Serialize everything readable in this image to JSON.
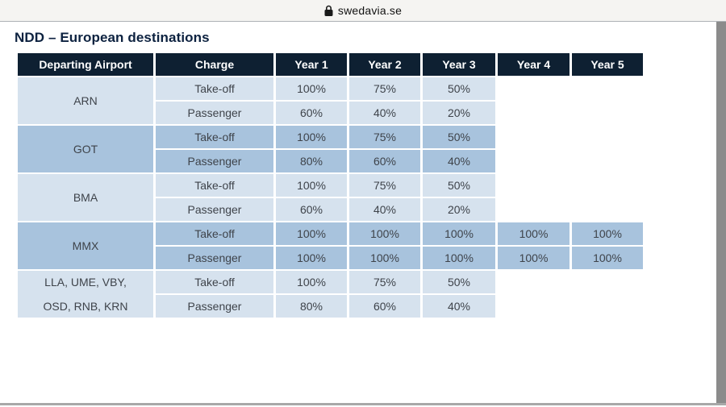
{
  "browser": {
    "site": "swedavia.se",
    "lock_icon": "lock-icon"
  },
  "page": {
    "title": "NDD – European destinations"
  },
  "colors": {
    "header_bg": "#0e2032",
    "row_light": "#d6e2ee",
    "row_dark": "#a8c3dd",
    "title_navy": "#0d2240",
    "cell_text": "#3e434a"
  },
  "table": {
    "headers": [
      "Departing Airport",
      "Charge",
      "Year 1",
      "Year 2",
      "Year 3",
      "Year 4",
      "Year 5"
    ],
    "groups": [
      {
        "airport_lines": [
          "ARN"
        ],
        "shade": "light",
        "rows": [
          {
            "charge": "Take-off",
            "values": [
              "100%",
              "75%",
              "50%",
              "",
              ""
            ]
          },
          {
            "charge": "Passenger",
            "values": [
              "60%",
              "40%",
              "20%",
              "",
              ""
            ]
          }
        ]
      },
      {
        "airport_lines": [
          "GOT"
        ],
        "shade": "dark",
        "rows": [
          {
            "charge": "Take-off",
            "values": [
              "100%",
              "75%",
              "50%",
              "",
              ""
            ]
          },
          {
            "charge": "Passenger",
            "values": [
              "80%",
              "60%",
              "40%",
              "",
              ""
            ]
          }
        ]
      },
      {
        "airport_lines": [
          "BMA"
        ],
        "shade": "light",
        "rows": [
          {
            "charge": "Take-off",
            "values": [
              "100%",
              "75%",
              "50%",
              "",
              ""
            ]
          },
          {
            "charge": "Passenger",
            "values": [
              "60%",
              "40%",
              "20%",
              "",
              ""
            ]
          }
        ]
      },
      {
        "airport_lines": [
          "MMX"
        ],
        "shade": "dark",
        "rows": [
          {
            "charge": "Take-off",
            "values": [
              "100%",
              "100%",
              "100%",
              "100%",
              "100%"
            ]
          },
          {
            "charge": "Passenger",
            "values": [
              "100%",
              "100%",
              "100%",
              "100%",
              "100%"
            ]
          }
        ]
      },
      {
        "airport_lines": [
          "LLA, UME, VBY,",
          "OSD, RNB, KRN"
        ],
        "shade": "light",
        "rows": [
          {
            "charge": "Take-off",
            "values": [
              "100%",
              "75%",
              "50%",
              "",
              ""
            ]
          },
          {
            "charge": "Passenger",
            "values": [
              "80%",
              "60%",
              "40%",
              "",
              ""
            ]
          }
        ]
      }
    ]
  },
  "chart_data": {
    "type": "table",
    "title": "NDD – European destinations",
    "columns": [
      "Departing Airport",
      "Charge",
      "Year 1",
      "Year 2",
      "Year 3",
      "Year 4",
      "Year 5"
    ],
    "rows": [
      [
        "ARN",
        "Take-off",
        "100%",
        "75%",
        "50%",
        "",
        ""
      ],
      [
        "ARN",
        "Passenger",
        "60%",
        "40%",
        "20%",
        "",
        ""
      ],
      [
        "GOT",
        "Take-off",
        "100%",
        "75%",
        "50%",
        "",
        ""
      ],
      [
        "GOT",
        "Passenger",
        "80%",
        "60%",
        "40%",
        "",
        ""
      ],
      [
        "BMA",
        "Take-off",
        "100%",
        "75%",
        "50%",
        "",
        ""
      ],
      [
        "BMA",
        "Passenger",
        "60%",
        "40%",
        "20%",
        "",
        ""
      ],
      [
        "MMX",
        "Take-off",
        "100%",
        "100%",
        "100%",
        "100%",
        "100%"
      ],
      [
        "MMX",
        "Passenger",
        "100%",
        "100%",
        "100%",
        "100%",
        "100%"
      ],
      [
        "LLA, UME, VBY, OSD, RNB, KRN",
        "Take-off",
        "100%",
        "75%",
        "50%",
        "",
        ""
      ],
      [
        "LLA, UME, VBY, OSD, RNB, KRN",
        "Passenger",
        "80%",
        "60%",
        "40%",
        "",
        ""
      ]
    ]
  }
}
